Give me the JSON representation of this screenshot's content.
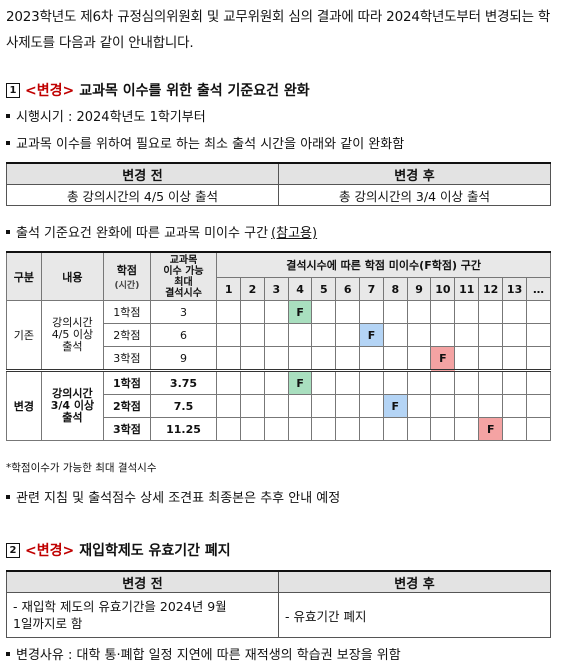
{
  "intro": "2023학년도 제6차 규정심의위원회 및 교무위원회 심의 결과에 따라 2024학년도부터 변경되는 학사제도를 다음과 같이 안내합니다.",
  "section1": {
    "num": "1",
    "tag": "<변경>",
    "title": "교과목 이수를 위한 출석 기준요건 완화",
    "bullet1": "시행시기 : 2024학년도 1학기부터",
    "bullet2": "교과목 이수를 위하여 필요로 하는 최소 출석 시간을 아래와 같이 완화함",
    "compare": {
      "before_header": "변경 전",
      "after_header": "변경 후",
      "before": "총 강의시간의 4/5 이상 출석",
      "after": "총 강의시간의 3/4 이상 출석"
    },
    "bullet3_prefix": "출석 기준요건 완화에 따른 교과목 미이수 구간",
    "bullet3_ref": "(참고용)",
    "grid": {
      "h_type": "구분",
      "h_content": "내용",
      "h_credit": "학점",
      "h_credit_sub": "(시간)",
      "h_max": "교과목\n이수 가능\n최대\n결석시수",
      "h_range": "결석시수에 따른 학점 미이수(F학점) 구간",
      "cols": [
        "1",
        "2",
        "3",
        "4",
        "5",
        "6",
        "7",
        "8",
        "9",
        "10",
        "11",
        "12",
        "13",
        "…"
      ],
      "groups": [
        {
          "type": "기존",
          "content": "강의시간\n4/5 이상\n출석",
          "rows": [
            {
              "credit": "1학점",
              "max": "3",
              "f_col": 4,
              "f_color": "#a9dfbf"
            },
            {
              "credit": "2학점",
              "max": "6",
              "f_col": 7,
              "f_color": "#b4d4f5"
            },
            {
              "credit": "3학점",
              "max": "9",
              "f_col": 10,
              "f_color": "#f4a3a3"
            }
          ]
        },
        {
          "type": "변경",
          "content": "강의시간\n3/4 이상\n출석",
          "rows": [
            {
              "credit": "1학점",
              "max": "3.75",
              "f_col": 4,
              "f_color": "#a9dfbf"
            },
            {
              "credit": "2학점",
              "max": "7.5",
              "f_col": 8,
              "f_color": "#b4d4f5"
            },
            {
              "credit": "3학점",
              "max": "11.25",
              "f_col": 12,
              "f_color": "#f4a3a3"
            }
          ]
        }
      ],
      "f_label": "F"
    },
    "footnote": "*학점이수가 가능한 최대 결석시수",
    "bullet4": "관련 지침 및 출석점수 상세 조견표 최종본은 추후 안내 예정"
  },
  "section2": {
    "num": "2",
    "tag": "<변경>",
    "title": "재입학제도 유효기간 폐지",
    "compare": {
      "before_header": "변경 전",
      "after_header": "변경 후",
      "before": "- 재입학 제도의 유효기간을 2024년 9월\n1일까지로 함",
      "after": "- 유효기간 폐지"
    },
    "reason": "변경사유 : 대학 통·폐합 일정 지연에 따른 재적생의 학습권 보장을 위함"
  }
}
